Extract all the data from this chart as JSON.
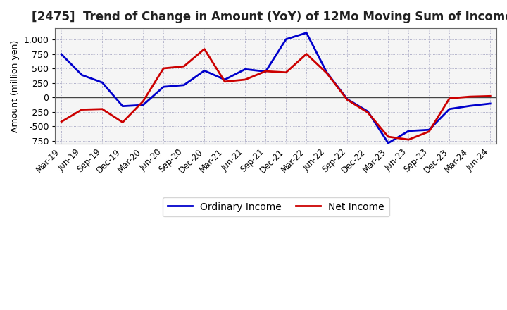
{
  "title": "[2475]  Trend of Change in Amount (YoY) of 12Mo Moving Sum of Incomes",
  "ylabel": "Amount (million yen)",
  "x_labels": [
    "Mar-19",
    "Jun-19",
    "Sep-19",
    "Dec-19",
    "Mar-20",
    "Jun-20",
    "Sep-20",
    "Dec-20",
    "Mar-21",
    "Jun-21",
    "Sep-21",
    "Dec-21",
    "Mar-22",
    "Jun-22",
    "Sep-22",
    "Dec-22",
    "Mar-23",
    "Jun-23",
    "Sep-23",
    "Dec-23",
    "Mar-24",
    "Jun-24"
  ],
  "ordinary_income": [
    750,
    390,
    260,
    -150,
    -130,
    185,
    215,
    465,
    310,
    490,
    450,
    1010,
    1120,
    430,
    -30,
    -240,
    -790,
    -580,
    -560,
    -200,
    -145,
    -105
  ],
  "net_income": [
    -420,
    -210,
    -200,
    -430,
    -65,
    505,
    540,
    840,
    275,
    310,
    455,
    435,
    755,
    420,
    -40,
    -260,
    -680,
    -730,
    -590,
    -15,
    15,
    25
  ],
  "ylim": [
    -800,
    1200
  ],
  "yticks": [
    -750,
    -500,
    -250,
    0,
    250,
    500,
    750,
    1000
  ],
  "ordinary_color": "#0000cc",
  "net_color": "#cc0000",
  "background_color": "#ffffff",
  "plot_bg_color": "#f5f5f5",
  "grid_color": "#9999bb",
  "legend_ordinary": "Ordinary Income",
  "legend_net": "Net Income",
  "title_fontsize": 12,
  "axis_fontsize": 9,
  "legend_fontsize": 10
}
